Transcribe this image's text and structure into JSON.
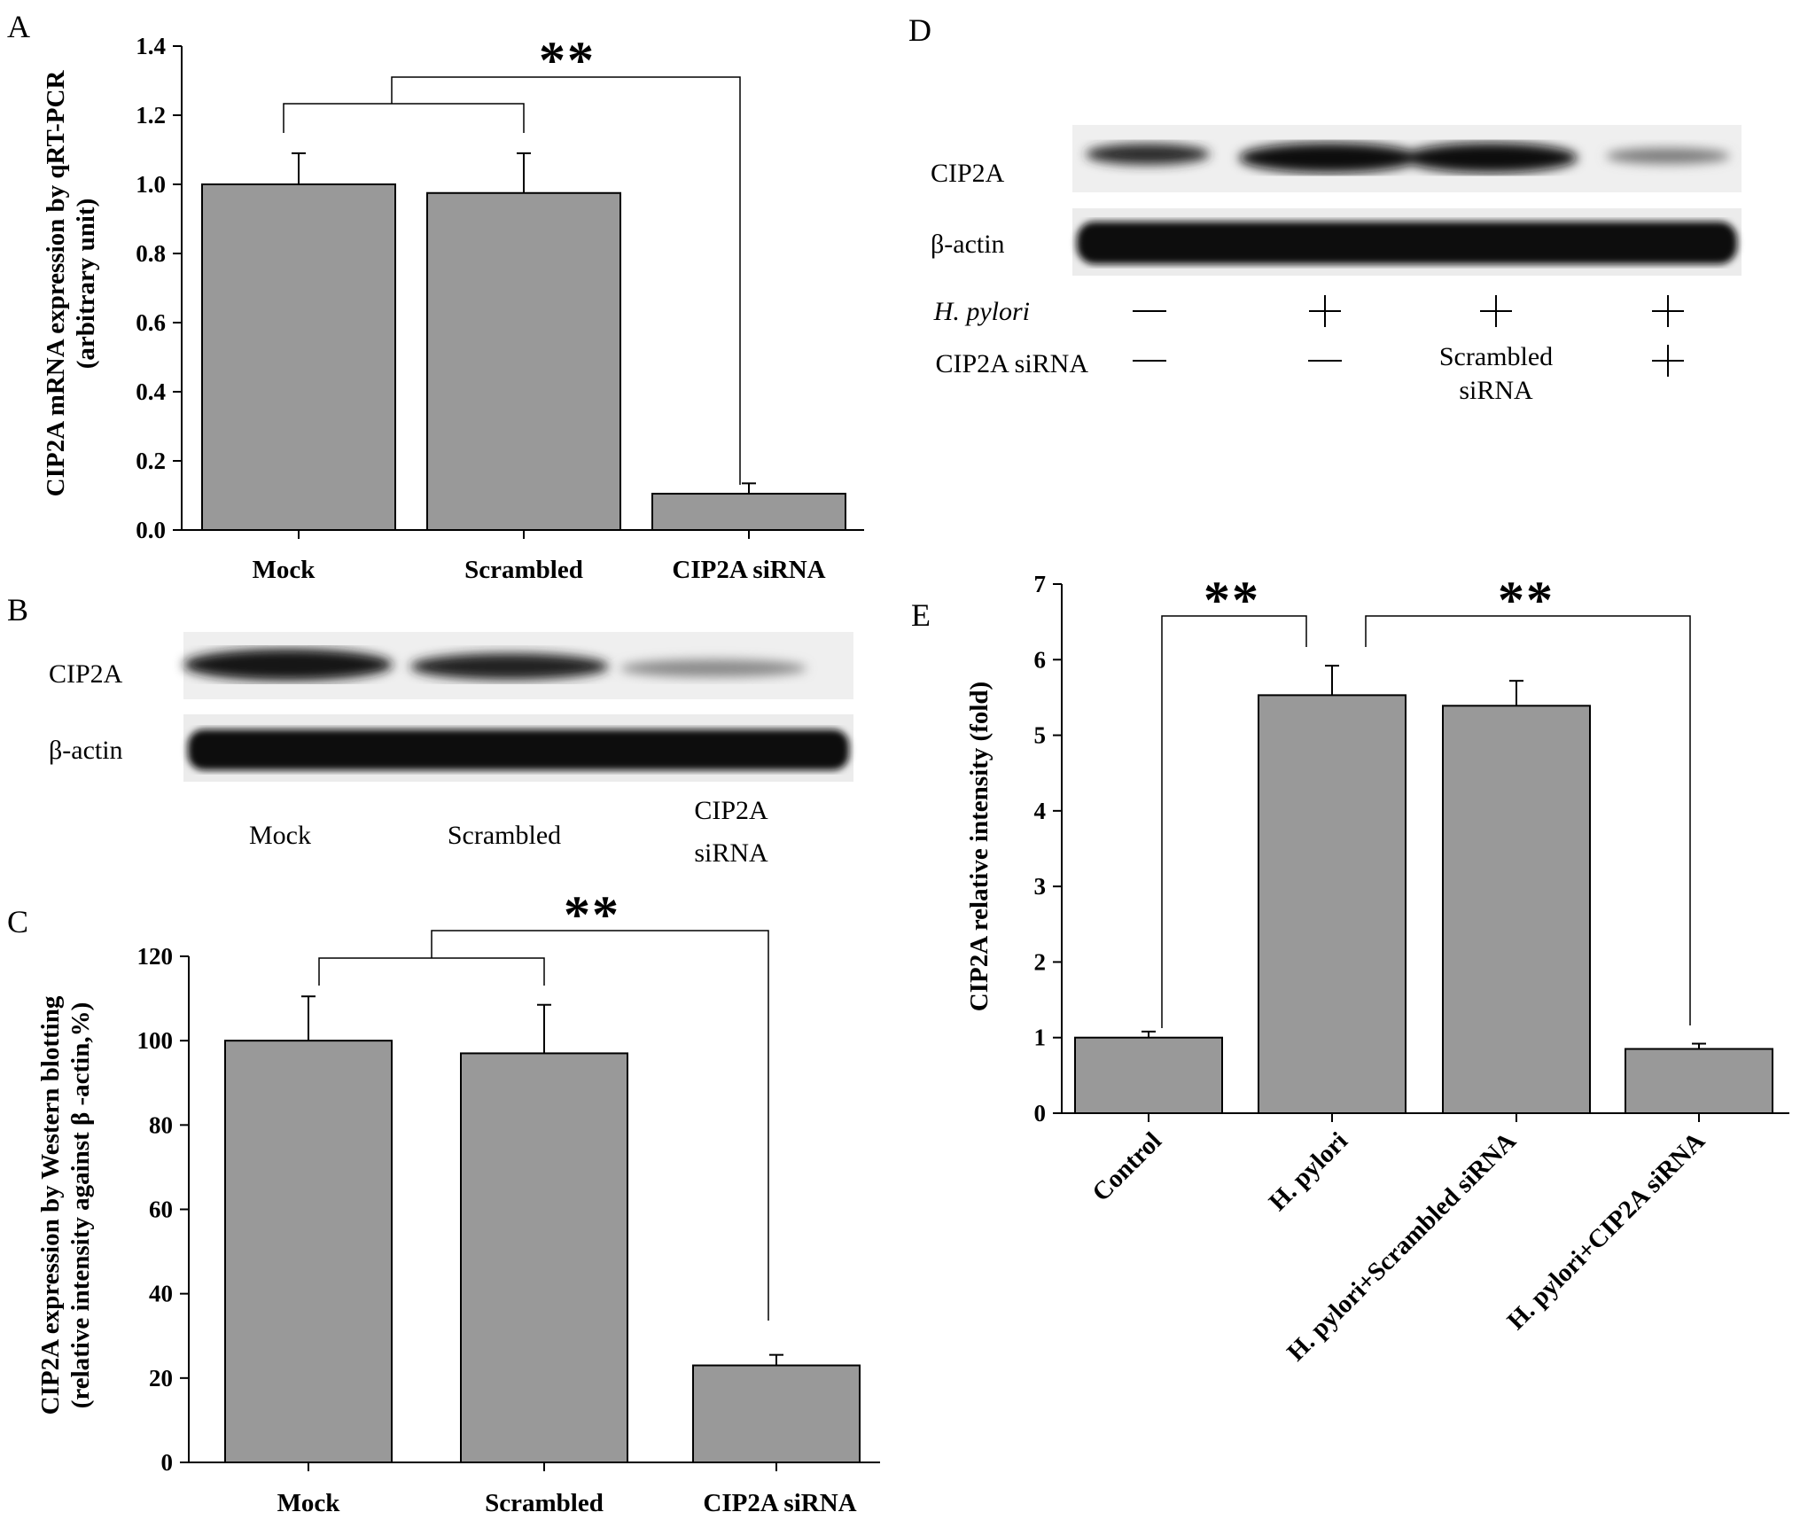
{
  "figure": {
    "panel_labels": [
      "A",
      "B",
      "C",
      "D",
      "E"
    ]
  },
  "colors": {
    "bar": "#999999",
    "stroke": "#000000"
  },
  "chart_data": [
    {
      "panel": "A",
      "type": "bar",
      "ylabel_line1": "CIP2A mRNA expression by qRT-PCR",
      "ylabel_line2": "(arbitrary unit)",
      "categories": [
        "Mock",
        "Scrambled",
        "CIP2A siRNA"
      ],
      "values": [
        1.0,
        0.975,
        0.105
      ],
      "errors": [
        0.09,
        0.115,
        0.03
      ],
      "ylim": [
        0,
        1.4
      ],
      "yticks": [
        "0.0",
        "0.2",
        "0.4",
        "0.6",
        "0.8",
        "1.0",
        "1.2",
        "1.4"
      ],
      "significance": "**"
    },
    {
      "panel": "C",
      "type": "bar",
      "ylabel_line1": "CIP2A expression by Western blotting",
      "ylabel_line2": "(relative intensity against β -actin,%)",
      "categories": [
        "Mock",
        "Scrambled",
        "CIP2A siRNA"
      ],
      "values": [
        100,
        97,
        23
      ],
      "errors": [
        10.5,
        11.5,
        2.5
      ],
      "ylim": [
        0,
        120
      ],
      "yticks": [
        "0",
        "20",
        "40",
        "60",
        "80",
        "100",
        "120"
      ],
      "significance": "**"
    },
    {
      "panel": "E",
      "type": "bar",
      "ylabel": "CIP2A relative intensity (fold)",
      "categories": [
        "Control",
        "H. pylori",
        "H. pylori+Scrambled siRNA",
        "H. pylori+CIP2A siRNA"
      ],
      "values": [
        1.0,
        5.53,
        5.39,
        0.85
      ],
      "errors": [
        0.08,
        0.39,
        0.33,
        0.07
      ],
      "ylim": [
        0,
        7
      ],
      "yticks": [
        "0",
        "1",
        "2",
        "3",
        "4",
        "5",
        "6",
        "7"
      ],
      "significance": [
        "**",
        "**"
      ]
    }
  ],
  "blot_B": {
    "rows": [
      "CIP2A",
      "β-actin"
    ],
    "lanes": [
      "Mock",
      "Scrambled",
      "CIP2A siRNA"
    ],
    "lane3_line1": "CIP2A",
    "lane3_line2": "siRNA"
  },
  "blot_D": {
    "rows": [
      "CIP2A",
      "β-actin"
    ],
    "condition_hpylori_label": "H. pylori",
    "condition_sirna_label": "CIP2A siRNA",
    "hpylori": [
      "—",
      "+",
      "+",
      "+"
    ],
    "sirna": [
      "—",
      "—",
      "",
      "+"
    ],
    "scrambled_line1": "Scrambled",
    "scrambled_line2": "siRNA"
  }
}
